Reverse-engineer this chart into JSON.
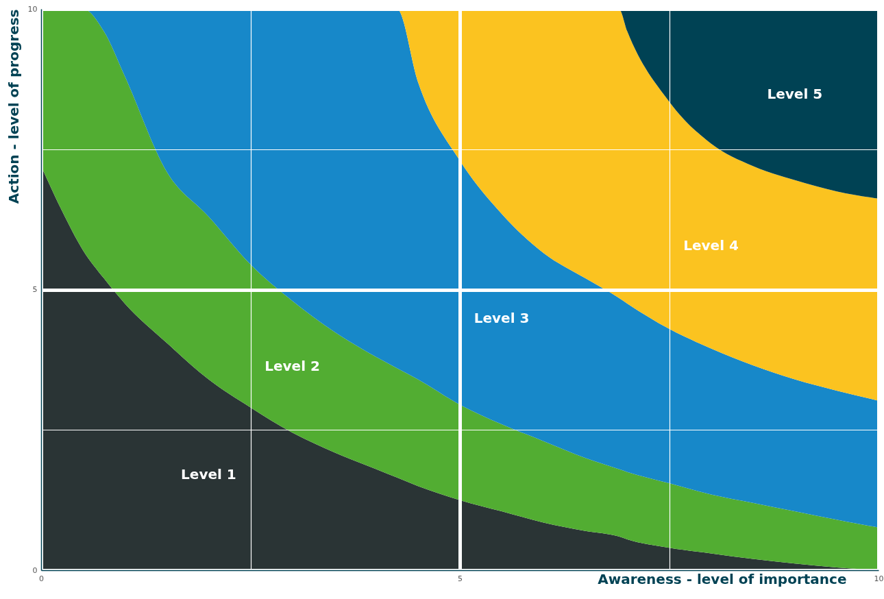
{
  "chart_data": {
    "type": "area",
    "stacked": true,
    "xlabel": "Awareness - level of importance",
    "ylabel": "Action - level of progress",
    "x": [
      0,
      0.25,
      0.5,
      0.75,
      1,
      1.5,
      2,
      2.5,
      3,
      3.5,
      4,
      4.25,
      4.5,
      5,
      5.5,
      6,
      6.5,
      6.9,
      7,
      7.5,
      8,
      8.5,
      9,
      9.5,
      10
    ],
    "series": [
      {
        "name": "Level 1",
        "color": "#2a3435",
        "values": [
          7.2,
          6.4,
          5.7,
          5.2,
          4.75,
          4.05,
          3.4,
          2.9,
          2.45,
          2.1,
          1.8,
          1.65,
          1.5,
          1.25,
          1.05,
          0.85,
          0.7,
          0.6,
          0.55,
          0.4,
          0.3,
          0.2,
          0.12,
          0.05,
          0
        ]
      },
      {
        "name": "Level 2",
        "color": "#52ad32",
        "values": [
          2.8,
          3.6,
          4.3,
          4.4,
          4.05,
          3.05,
          2.9,
          2.55,
          2.35,
          2.15,
          2.0,
          1.95,
          1.9,
          1.7,
          1.55,
          1.45,
          1.3,
          1.2,
          1.2,
          1.15,
          1.05,
          1.0,
          0.93,
          0.85,
          0.76
        ]
      },
      {
        "name": "Level 3",
        "color": "#1788c9",
        "values": [
          0,
          0,
          0,
          0.4,
          1.2,
          2.9,
          3.7,
          4.55,
          5.2,
          5.75,
          6.2,
          6.4,
          5.3,
          4.35,
          3.75,
          3.35,
          3.2,
          3.05,
          3.0,
          2.75,
          2.6,
          2.45,
          2.35,
          2.3,
          2.26
        ]
      },
      {
        "name": "Level 4",
        "color": "#fbc320",
        "values": [
          0,
          0,
          0,
          0,
          0,
          0,
          0,
          0,
          0,
          0,
          0,
          0,
          1.3,
          2.7,
          3.65,
          4.35,
          4.8,
          5.15,
          4.85,
          4.05,
          3.65,
          3.55,
          3.55,
          3.55,
          3.6
        ]
      },
      {
        "name": "Level 5",
        "color": "#004254",
        "values": [
          0,
          0,
          0,
          0,
          0,
          0,
          0,
          0,
          0,
          0,
          0,
          0,
          0,
          0,
          0,
          0,
          0,
          0,
          0.4,
          1.65,
          2.4,
          2.8,
          3.05,
          3.25,
          3.38
        ]
      }
    ],
    "xlim": [
      0,
      10
    ],
    "ylim": [
      0,
      10
    ],
    "xticks": [
      0,
      {
        "value": 2.5,
        "label": null
      },
      5,
      {
        "value": 7.5,
        "label": null
      },
      10
    ],
    "yticks": [
      0,
      {
        "value": 2.5,
        "label": null
      },
      5,
      {
        "value": 7.5,
        "label": null
      },
      10
    ],
    "grid": true
  }
}
